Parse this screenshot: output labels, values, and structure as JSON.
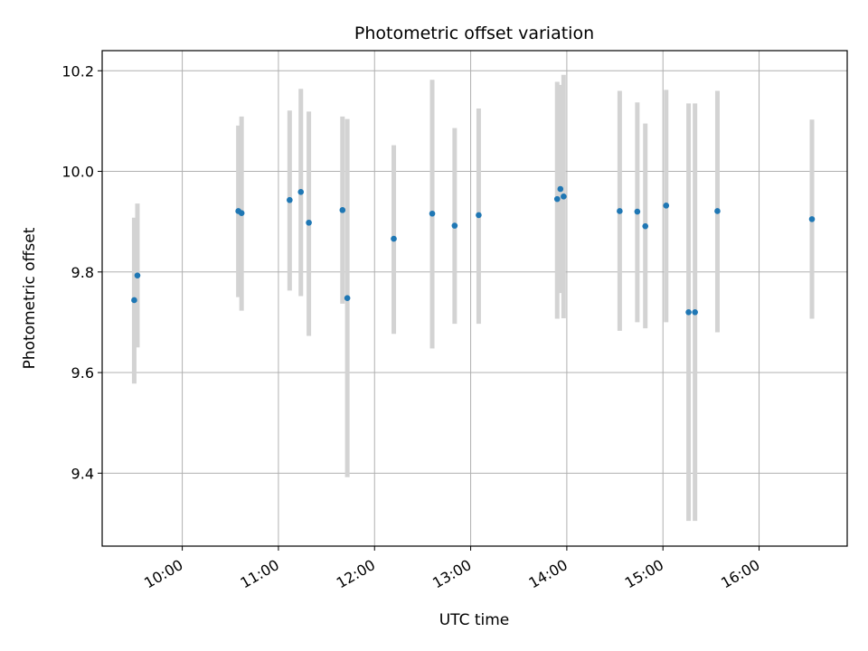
{
  "chart_data": {
    "type": "scatter",
    "title": "Photometric offset variation",
    "xlabel": "UTC time",
    "ylabel": "Photometric offset",
    "xlim": [
      "09:10",
      "16:55"
    ],
    "ylim": [
      9.255,
      10.24
    ],
    "x_ticks": [
      "10:00",
      "11:00",
      "12:00",
      "13:00",
      "14:00",
      "15:00",
      "16:00"
    ],
    "y_ticks": [
      9.4,
      9.6,
      9.8,
      10.0,
      10.2
    ],
    "y_tick_labels": [
      "9.4",
      "9.6",
      "9.8",
      "10.0",
      "10.2"
    ],
    "grid": true,
    "marker_color": "#1f77b4",
    "errorbar_color": "#d3d3d3",
    "points": [
      {
        "t": "09:30",
        "y": 9.744,
        "lo": 9.578,
        "hi": 9.908
      },
      {
        "t": "09:32",
        "y": 9.793,
        "lo": 9.65,
        "hi": 9.936
      },
      {
        "t": "10:35",
        "y": 9.921,
        "lo": 9.75,
        "hi": 10.091
      },
      {
        "t": "10:37",
        "y": 9.917,
        "lo": 9.723,
        "hi": 10.109
      },
      {
        "t": "11:07",
        "y": 9.943,
        "lo": 9.763,
        "hi": 10.121
      },
      {
        "t": "11:14",
        "y": 9.959,
        "lo": 9.752,
        "hi": 10.164
      },
      {
        "t": "11:19",
        "y": 9.898,
        "lo": 9.673,
        "hi": 10.119
      },
      {
        "t": "11:40",
        "y": 9.923,
        "lo": 9.737,
        "hi": 10.109
      },
      {
        "t": "11:43",
        "y": 9.748,
        "lo": 9.392,
        "hi": 10.104
      },
      {
        "t": "12:12",
        "y": 9.866,
        "lo": 9.677,
        "hi": 10.052
      },
      {
        "t": "12:36",
        "y": 9.916,
        "lo": 9.648,
        "hi": 10.182
      },
      {
        "t": "12:50",
        "y": 9.892,
        "lo": 9.697,
        "hi": 10.086
      },
      {
        "t": "13:05",
        "y": 9.913,
        "lo": 9.697,
        "hi": 10.125
      },
      {
        "t": "13:54",
        "y": 9.945,
        "lo": 9.707,
        "hi": 10.178
      },
      {
        "t": "13:56",
        "y": 9.965,
        "lo": 9.758,
        "hi": 10.172
      },
      {
        "t": "13:58",
        "y": 9.95,
        "lo": 9.708,
        "hi": 10.192
      },
      {
        "t": "14:33",
        "y": 9.921,
        "lo": 9.683,
        "hi": 10.16
      },
      {
        "t": "14:44",
        "y": 9.92,
        "lo": 9.7,
        "hi": 10.137
      },
      {
        "t": "14:49",
        "y": 9.891,
        "lo": 9.688,
        "hi": 10.095
      },
      {
        "t": "15:02",
        "y": 9.932,
        "lo": 9.7,
        "hi": 10.162
      },
      {
        "t": "15:16",
        "y": 9.72,
        "lo": 9.305,
        "hi": 10.135
      },
      {
        "t": "15:20",
        "y": 9.72,
        "lo": 9.305,
        "hi": 10.135
      },
      {
        "t": "15:34",
        "y": 9.921,
        "lo": 9.68,
        "hi": 10.16
      },
      {
        "t": "16:33",
        "y": 9.905,
        "lo": 9.707,
        "hi": 10.103
      }
    ]
  }
}
